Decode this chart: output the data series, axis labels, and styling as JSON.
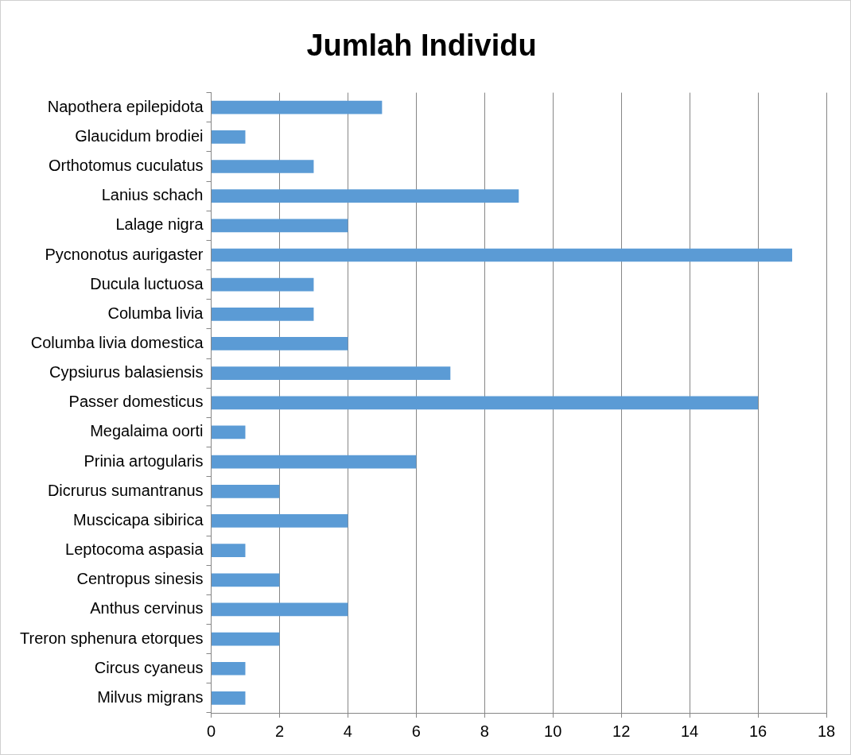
{
  "chart_data": {
    "type": "bar",
    "orientation": "horizontal",
    "title": "Jumlah Individu",
    "categories": [
      "Napothera epilepidota",
      "Glaucidum brodiei",
      "Orthotomus cuculatus",
      "Lanius schach",
      "Lalage nigra",
      "Pycnonotus aurigaster",
      "Ducula luctuosa",
      "Columba livia",
      "Columba livia domestica",
      "Cypsiurus balasiensis",
      "Passer domesticus",
      "Megalaima oorti",
      "Prinia artogularis",
      "Dicrurus sumantranus",
      "Muscicapa sibirica",
      "Leptocoma aspasia",
      "Centropus sinesis",
      "Anthus cervinus",
      "Treron sphenura etorques",
      "Circus cyaneus",
      "Milvus migrans"
    ],
    "values": [
      5,
      1,
      3,
      9,
      4,
      17,
      3,
      3,
      4,
      7,
      16,
      1,
      6,
      2,
      4,
      1,
      2,
      4,
      2,
      1,
      1
    ],
    "color": "#5b9bd5",
    "xlim": [
      0,
      18
    ],
    "xticks": [
      0,
      2,
      4,
      6,
      8,
      10,
      12,
      14,
      16,
      18
    ],
    "grid": "x"
  }
}
